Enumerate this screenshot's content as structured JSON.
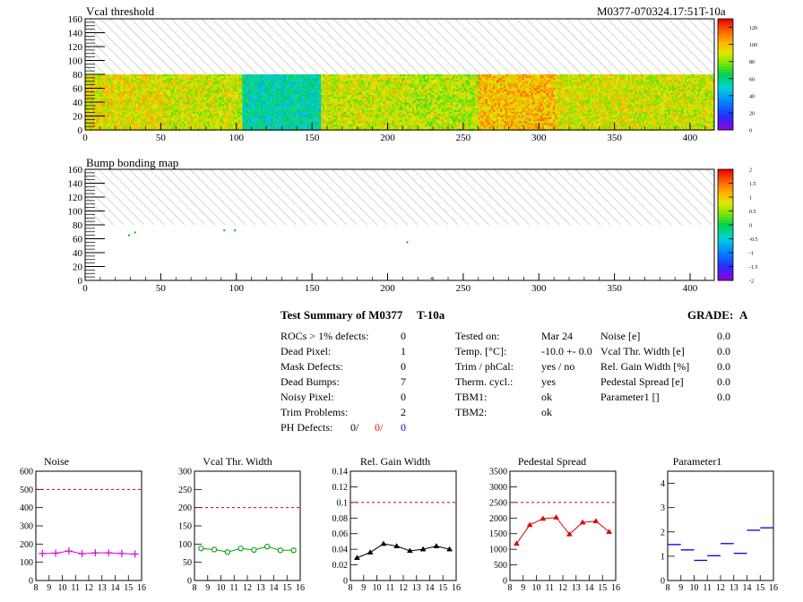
{
  "heatmaps": {
    "vcal": {
      "title": "Vcal threshold",
      "id_label": "M0377-070324.17:51T-10a",
      "palette_ticks": [
        "0",
        "20",
        "40",
        "60",
        "80",
        "100",
        "120"
      ]
    },
    "bump": {
      "title": "Bump bonding map",
      "palette_ticks": [
        "-2",
        "-1.5",
        "-1",
        "-0.5",
        "0",
        "0.5",
        "1",
        "1.5",
        "2"
      ]
    },
    "x_ticks": [
      "0",
      "50",
      "100",
      "150",
      "200",
      "250",
      "300",
      "350",
      "400"
    ],
    "y_ticks": [
      "0",
      "20",
      "40",
      "60",
      "80",
      "100",
      "120",
      "140",
      "160"
    ]
  },
  "summary": {
    "title": "Test Summary of M0377",
    "tag": "T-10a",
    "grade_label": "GRADE:",
    "grade": "A",
    "defects": [
      {
        "label": "ROCs > 1% defects:",
        "value": "0"
      },
      {
        "label": "Dead Pixel:",
        "value": "1"
      },
      {
        "label": "Mask Defects:",
        "value": "0"
      },
      {
        "label": "Dead Bumps:",
        "value": "7"
      },
      {
        "label": "Noisy Pixel:",
        "value": "0"
      },
      {
        "label": "Trim Problems:",
        "value": "2"
      }
    ],
    "ph_defects": {
      "label": "PH Defects:",
      "v1": "0/",
      "v2": "0/",
      "v3": "0",
      "color2": "#ff0000",
      "color3": "#0000ff"
    },
    "conditions": [
      {
        "label": "Tested on:",
        "value": "Mar 24"
      },
      {
        "label": "Temp. [°C]:",
        "value": "-10.0 +- 0.0"
      },
      {
        "label": "Trim / phCal:",
        "value": "yes / no"
      },
      {
        "label": "Therm. cycl.:",
        "value": "yes"
      },
      {
        "label": "TBM1:",
        "value": "ok"
      },
      {
        "label": "TBM2:",
        "value": "ok"
      }
    ],
    "params": [
      {
        "label": "Noise [e]",
        "value": "0.0"
      },
      {
        "label": "Vcal Thr. Width [e]",
        "value": "0.0"
      },
      {
        "label": "Rel. Gain Width [%]",
        "value": "0.0"
      },
      {
        "label": "Pedestal Spread [e]",
        "value": "0.0"
      },
      {
        "label": "Parameter1 []",
        "value": "0.0"
      }
    ]
  },
  "colors": {
    "noise": "#e000e0",
    "vcal_width": "#00a000",
    "gain": "#000000",
    "pedestal": "#e00000",
    "param1": "#0000e0",
    "limit_line": "#cc0000"
  },
  "chart_data": [
    {
      "type": "heatmap",
      "title": "Vcal threshold",
      "xlim": [
        0,
        416
      ],
      "ylim": [
        0,
        160
      ],
      "z_range": [
        0,
        130
      ],
      "rows_with_data": [
        0,
        80
      ],
      "roc_columns": [
        0,
        52,
        104,
        156,
        208,
        260,
        312,
        364,
        416
      ],
      "roc_mean_values": [
        92,
        88,
        55,
        88,
        85,
        100,
        90,
        88
      ],
      "hatched_region": [
        80,
        160
      ],
      "palette_ticks": [
        0,
        20,
        40,
        60,
        80,
        100,
        120
      ]
    },
    {
      "type": "heatmap",
      "title": "Bump bonding map",
      "xlim": [
        0,
        416
      ],
      "ylim": [
        0,
        160
      ],
      "z_range": [
        -2,
        2
      ],
      "hatched_region": [
        80,
        160
      ],
      "palette_ticks": [
        -2,
        -1.5,
        -1,
        -0.5,
        0,
        0.5,
        1,
        1.5,
        2
      ],
      "points": [
        {
          "x": 29,
          "y": 65
        },
        {
          "x": 33,
          "y": 69
        },
        {
          "x": 92,
          "y": 72
        },
        {
          "x": 99,
          "y": 72
        },
        {
          "x": 213,
          "y": 55
        },
        {
          "x": 229,
          "y": 3
        }
      ]
    },
    {
      "type": "line",
      "title": "Noise",
      "xlim": [
        8,
        16
      ],
      "ylim": [
        0,
        600
      ],
      "limit": 500,
      "x_ticks": [
        8,
        9,
        10,
        11,
        12,
        13,
        14,
        15,
        16
      ],
      "y_ticks": [
        0,
        100,
        200,
        300,
        400,
        500,
        600
      ],
      "x": [
        8.5,
        9.5,
        10.5,
        11.5,
        12.5,
        13.5,
        14.5,
        15.5
      ],
      "values": [
        148,
        150,
        162,
        147,
        152,
        152,
        148,
        145
      ],
      "marker": "cross"
    },
    {
      "type": "line",
      "title": "Vcal Thr. Width",
      "xlim": [
        8,
        16
      ],
      "ylim": [
        0,
        300
      ],
      "limit": 200,
      "x_ticks": [
        8,
        9,
        10,
        11,
        12,
        13,
        14,
        15,
        16
      ],
      "y_ticks": [
        0,
        50,
        100,
        150,
        200,
        250,
        300
      ],
      "x": [
        8.5,
        9.5,
        10.5,
        11.5,
        12.5,
        13.5,
        14.5,
        15.5
      ],
      "values": [
        88,
        85,
        78,
        88,
        84,
        93,
        83,
        83
      ],
      "marker": "circle"
    },
    {
      "type": "line",
      "title": "Rel. Gain Width",
      "xlim": [
        8,
        16
      ],
      "ylim": [
        0,
        0.14
      ],
      "limit": 0.1,
      "x_ticks": [
        8,
        9,
        10,
        11,
        12,
        13,
        14,
        15,
        16
      ],
      "y_ticks": [
        0,
        0.02,
        0.04,
        0.06,
        0.08,
        0.1,
        0.12,
        0.14
      ],
      "x": [
        8.5,
        9.5,
        10.5,
        11.5,
        12.5,
        13.5,
        14.5,
        15.5
      ],
      "values": [
        0.029,
        0.036,
        0.047,
        0.044,
        0.038,
        0.04,
        0.044,
        0.04
      ],
      "marker": "triangle"
    },
    {
      "type": "line",
      "title": "Pedestal Spread",
      "xlim": [
        8,
        16
      ],
      "ylim": [
        0,
        3500
      ],
      "limit": 2500,
      "x_ticks": [
        8,
        9,
        10,
        11,
        12,
        13,
        14,
        15,
        16
      ],
      "y_ticks": [
        0,
        500,
        1000,
        1500,
        2000,
        2500,
        3000,
        3500
      ],
      "x": [
        8.5,
        9.5,
        10.5,
        11.5,
        12.5,
        13.5,
        14.5,
        15.5
      ],
      "values": [
        1180,
        1780,
        1980,
        2020,
        1480,
        1860,
        1900,
        1560
      ],
      "marker": "triangle"
    },
    {
      "type": "scatter",
      "title": "Parameter1",
      "xlim": [
        8,
        16
      ],
      "ylim": [
        0,
        4.5
      ],
      "x_ticks": [
        8,
        9,
        10,
        11,
        12,
        13,
        14,
        15,
        16
      ],
      "y_ticks": [
        0,
        1,
        2,
        3,
        4
      ],
      "x": [
        8.5,
        9.5,
        10.5,
        11.5,
        12.5,
        13.5,
        14.5,
        15.5
      ],
      "values": [
        1.48,
        1.26,
        0.83,
        1.02,
        1.52,
        1.12,
        2.07,
        2.17
      ],
      "marker": "hbar"
    }
  ]
}
